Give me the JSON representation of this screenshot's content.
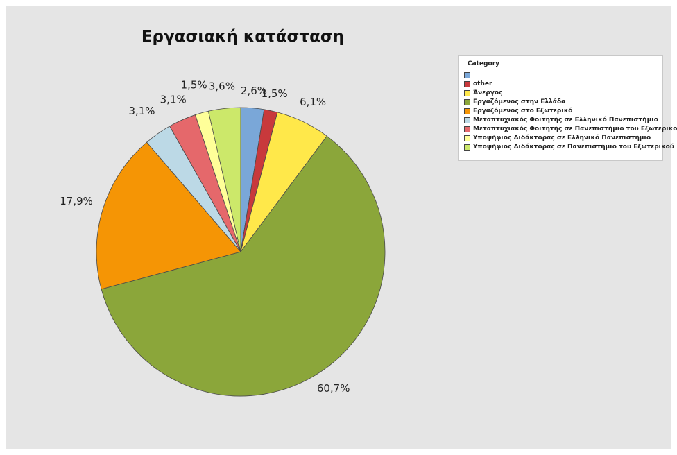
{
  "chart_data": {
    "type": "pie",
    "title": "Εργασιακή κατάσταση",
    "legend_title": "Category",
    "legend_position": "top-right",
    "slices": [
      {
        "label": "",
        "value": 2.6,
        "text": "2,6%",
        "color": "#7aa7d8"
      },
      {
        "label": "other",
        "value": 1.5,
        "text": "1,5%",
        "color": "#c8393c"
      },
      {
        "label": "Άνεργος",
        "value": 6.1,
        "text": "6,1%",
        "color": "#ffe84a"
      },
      {
        "label": "Εργαζόμενος στην Ελλάδα",
        "value": 60.7,
        "text": "60,7%",
        "color": "#8ba63a"
      },
      {
        "label": "Εργαζόμενος στο Εξωτερικό",
        "value": 17.9,
        "text": "17,9%",
        "color": "#f59505"
      },
      {
        "label": "Μεταπτυχιακός Φοιτητής σε Ελληνικό Πανεπιστήμιο",
        "value": 3.1,
        "text": "3,1%",
        "color": "#bcd9e6"
      },
      {
        "label": "Μεταπτυχιακός Φοιτητής σε Πανεπιστήμιο του Εξωτερικού",
        "value": 3.1,
        "text": "3,1%",
        "color": "#e5686b"
      },
      {
        "label": "Υποψήφιος Διδάκτορας σε Ελληνικό Πανεπιστήμιο",
        "value": 1.5,
        "text": "1,5%",
        "color": "#ffff99"
      },
      {
        "label": "Υποψήφιος Διδάκτορας σε Πανεπιστήμιο του Εξωτερικού",
        "value": 3.6,
        "text": "3,6%",
        "color": "#cce86a"
      }
    ]
  }
}
